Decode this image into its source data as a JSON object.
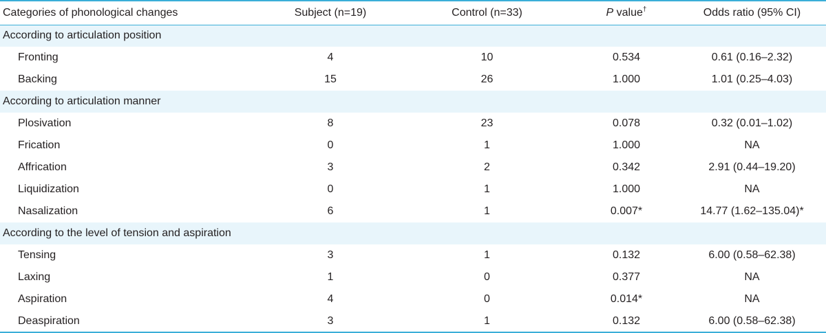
{
  "headers": {
    "category": "Categories of phonological changes",
    "subject": "Subject (n=19)",
    "control": "Control (n=33)",
    "p_italic": "P",
    "p_rest": " value",
    "p_sup": "†",
    "odds": "Odds ratio (95% CI)"
  },
  "sections": [
    {
      "title": "According to articulation position",
      "rows": [
        {
          "name": "Fronting",
          "subject": "4",
          "control": "10",
          "p": "0.534",
          "odds": "0.61 (0.16–2.32)"
        },
        {
          "name": "Backing",
          "subject": "15",
          "control": "26",
          "p": "1.000",
          "odds": "1.01 (0.25–4.03)"
        }
      ]
    },
    {
      "title": "According to articulation manner",
      "rows": [
        {
          "name": "Plosivation",
          "subject": "8",
          "control": "23",
          "p": "0.078",
          "odds": "0.32 (0.01–1.02)"
        },
        {
          "name": "Frication",
          "subject": "0",
          "control": "1",
          "p": "1.000",
          "odds": "NA"
        },
        {
          "name": "Affrication",
          "subject": "3",
          "control": "2",
          "p": "0.342",
          "odds": "2.91 (0.44–19.20)"
        },
        {
          "name": "Liquidization",
          "subject": "0",
          "control": "1",
          "p": "1.000",
          "odds": "NA"
        },
        {
          "name": "Nasalization",
          "subject": "6",
          "control": "1",
          "p": "0.007*",
          "odds": "14.77 (1.62–135.04)*"
        }
      ]
    },
    {
      "title": "According to the level of tension and aspiration",
      "rows": [
        {
          "name": "Tensing",
          "subject": "3",
          "control": "1",
          "p": "0.132",
          "odds": "6.00 (0.58–62.38)"
        },
        {
          "name": "Laxing",
          "subject": "1",
          "control": "0",
          "p": "0.377",
          "odds": "NA"
        },
        {
          "name": "Aspiration",
          "subject": "4",
          "control": "0",
          "p": "0.014*",
          "odds": "NA"
        },
        {
          "name": "Deaspiration",
          "subject": "3",
          "control": "1",
          "p": "0.132",
          "odds": "6.00 (0.58–62.38)"
        }
      ]
    }
  ]
}
